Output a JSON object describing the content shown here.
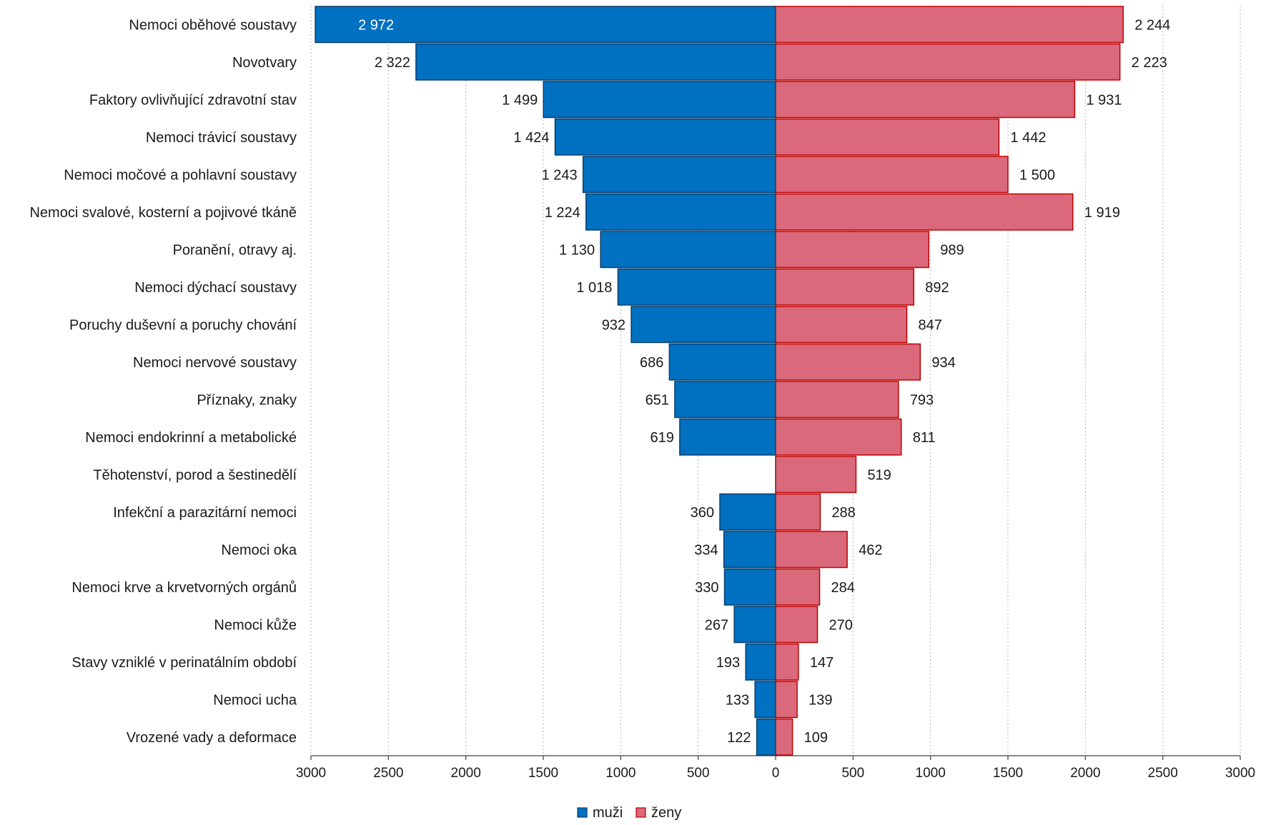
{
  "chart_data": {
    "type": "bar",
    "orientation": "horizontal-butterfly",
    "title": "",
    "xlabel": "",
    "ylabel": "",
    "xlim": [
      -3000,
      3000
    ],
    "xticks": [
      -3000,
      -2500,
      -2000,
      -1500,
      -1000,
      -500,
      0,
      500,
      1000,
      1500,
      2000,
      2500,
      3000
    ],
    "xtick_labels": [
      "3000",
      "2500",
      "2000",
      "1500",
      "1000",
      "500",
      "0",
      "500",
      "1000",
      "1500",
      "2000",
      "2500",
      "3000"
    ],
    "grid": "vertical dotted",
    "legend_placement": "bottom-center",
    "categories": [
      "Nemoci oběhové soustavy",
      "Novotvary",
      "Faktory ovlivňující zdravotní stav",
      "Nemoci trávicí soustavy",
      "Nemoci močové a pohlavní soustavy",
      "Nemoci svalové, kosterní a pojivové tkáně",
      "Poranění, otravy aj.",
      "Nemoci dýchací soustavy",
      "Poruchy duševní a poruchy chování",
      "Nemoci nervové soustavy",
      "Příznaky, znaky",
      "Nemoci endokrinní a metabolické",
      "Těhotenství, porod a šestinedělí",
      "Infekční a parazitární nemoci",
      "Nemoci oka",
      "Nemoci krve a krvetvorných orgánů",
      "Nemoci kůže",
      "Stavy vzniklé v perinatálním období",
      "Nemoci ucha",
      "Vrozené vady a deformace"
    ],
    "series": [
      {
        "name": "muži",
        "side": "left",
        "color": "#0070c0",
        "border": "#0a3d6b",
        "values": [
          2972,
          2322,
          1499,
          1424,
          1243,
          1224,
          1130,
          1018,
          932,
          686,
          651,
          619,
          null,
          360,
          334,
          330,
          267,
          193,
          133,
          122
        ],
        "labels": [
          "2 972",
          "2 322",
          "1 499",
          "1 424",
          "1 243",
          "1 224",
          "1 130",
          "1 018",
          "932",
          "686",
          "651",
          "619",
          "",
          "360",
          "334",
          "330",
          "267",
          "193",
          "133",
          "122"
        ]
      },
      {
        "name": "ženy",
        "side": "right",
        "color": "#d9697b",
        "border": "#c00000",
        "values": [
          2244,
          2223,
          1931,
          1442,
          1500,
          1919,
          989,
          892,
          847,
          934,
          793,
          811,
          519,
          288,
          462,
          284,
          270,
          147,
          139,
          109
        ],
        "labels": [
          "2 244",
          "2 223",
          "1 931",
          "1 442",
          "1 500",
          "1 919",
          "989",
          "892",
          "847",
          "934",
          "793",
          "811",
          "519",
          "288",
          "462",
          "284",
          "270",
          "147",
          "139",
          "109"
        ]
      }
    ]
  }
}
